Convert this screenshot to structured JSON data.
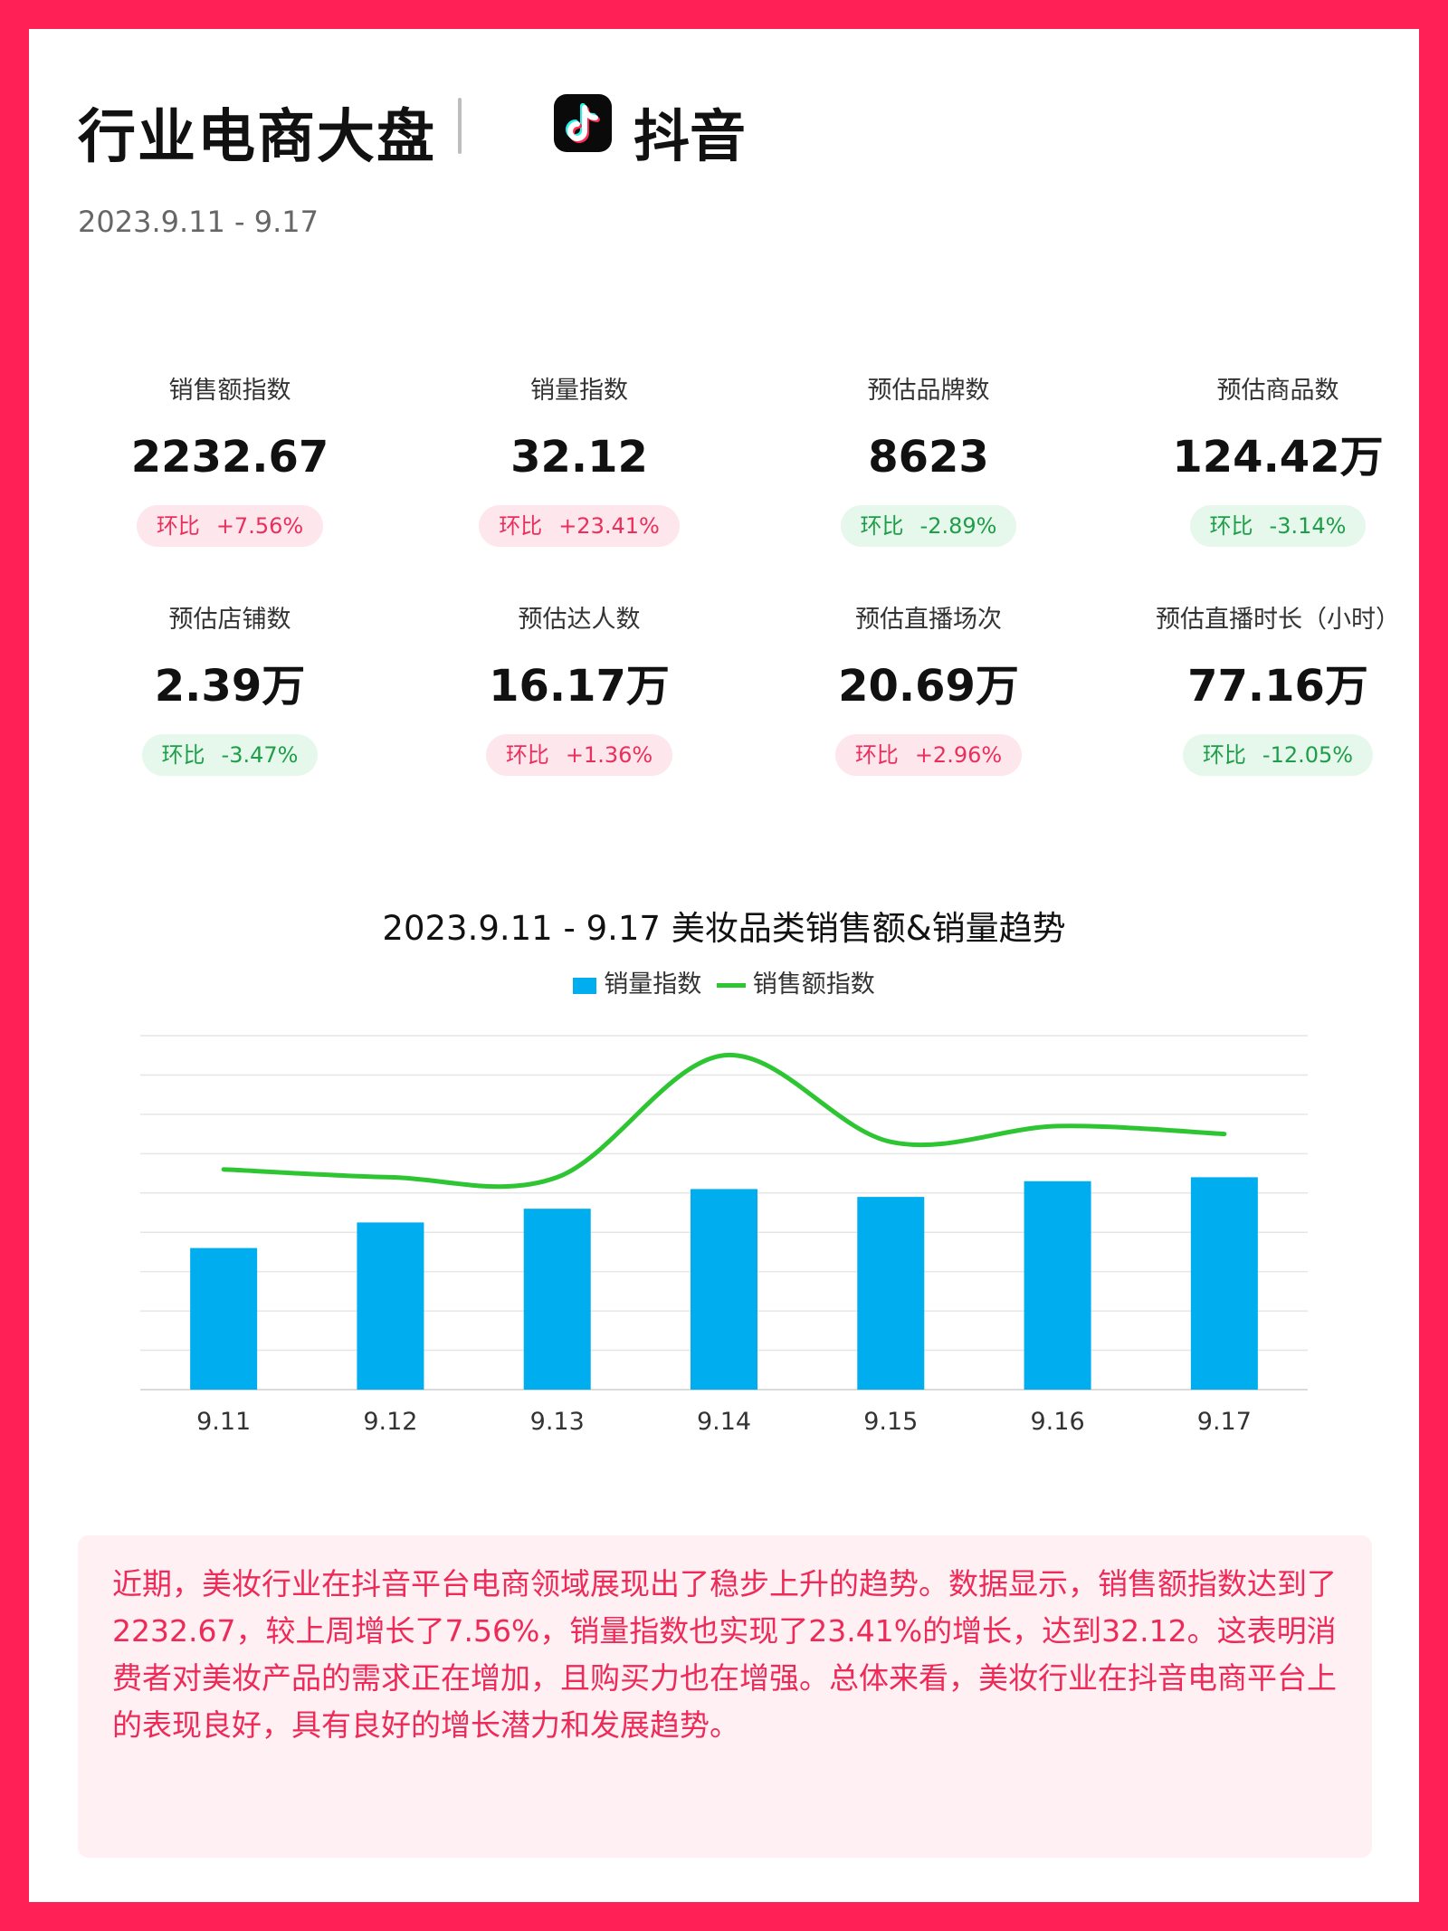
{
  "header": {
    "title": "行业电商大盘",
    "platform": "抖音",
    "date_range": "2023.9.11 - 9.17"
  },
  "metrics": [
    {
      "label": "销售额指数",
      "value": "2232.67",
      "badge_label": "环比",
      "change": "+7.56%",
      "trend": "up"
    },
    {
      "label": "销量指数",
      "value": "32.12",
      "badge_label": "环比",
      "change": "+23.41%",
      "trend": "up"
    },
    {
      "label": "预估品牌数",
      "value": "8623",
      "badge_label": "环比",
      "change": "-2.89%",
      "trend": "down"
    },
    {
      "label": "预估商品数",
      "value": "124.42万",
      "badge_label": "环比",
      "change": "-3.14%",
      "trend": "down"
    },
    {
      "label": "预估店铺数",
      "value": "2.39万",
      "badge_label": "环比",
      "change": "-3.47%",
      "trend": "down"
    },
    {
      "label": "预估达人数",
      "value": "16.17万",
      "badge_label": "环比",
      "change": "+1.36%",
      "trend": "up"
    },
    {
      "label": "预估直播场次",
      "value": "20.69万",
      "badge_label": "环比",
      "change": "+2.96%",
      "trend": "up"
    },
    {
      "label": "预估直播时长（小时）",
      "value": "77.16万",
      "badge_label": "环比",
      "change": "-12.05%",
      "trend": "down"
    }
  ],
  "chart_data": {
    "type": "bar",
    "title": "2023.9.11 - 9.17 美妆品类销售额&销量趋势",
    "categories": [
      "9.11",
      "9.12",
      "9.13",
      "9.14",
      "9.15",
      "9.16",
      "9.17"
    ],
    "series": [
      {
        "name": "销量指数",
        "type": "bar",
        "color": "#00adee",
        "values": [
          3.6,
          4.25,
          4.6,
          5.1,
          4.9,
          5.3,
          5.4
        ]
      },
      {
        "name": "销售额指数",
        "type": "line",
        "color": "#2ec533",
        "values": [
          5.6,
          5.4,
          5.4,
          8.5,
          6.3,
          6.7,
          6.5
        ]
      }
    ],
    "ylim": [
      0,
      9
    ],
    "grid": true,
    "legend": "top-center",
    "xlabel": "",
    "ylabel": ""
  },
  "summary": "近期，美妆行业在抖音平台电商领域展现出了稳步上升的趋势。数据显示，销售额指数达到了2232.67，较上周增长了7.56%，销量指数也实现了23.41%的增长，达到32.12。这表明消费者对美妆产品的需求正在增加，且购买力也在增强。总体来看，美妆行业在抖音电商平台上的表现良好，具有良好的增长潜力和发展趋势。"
}
